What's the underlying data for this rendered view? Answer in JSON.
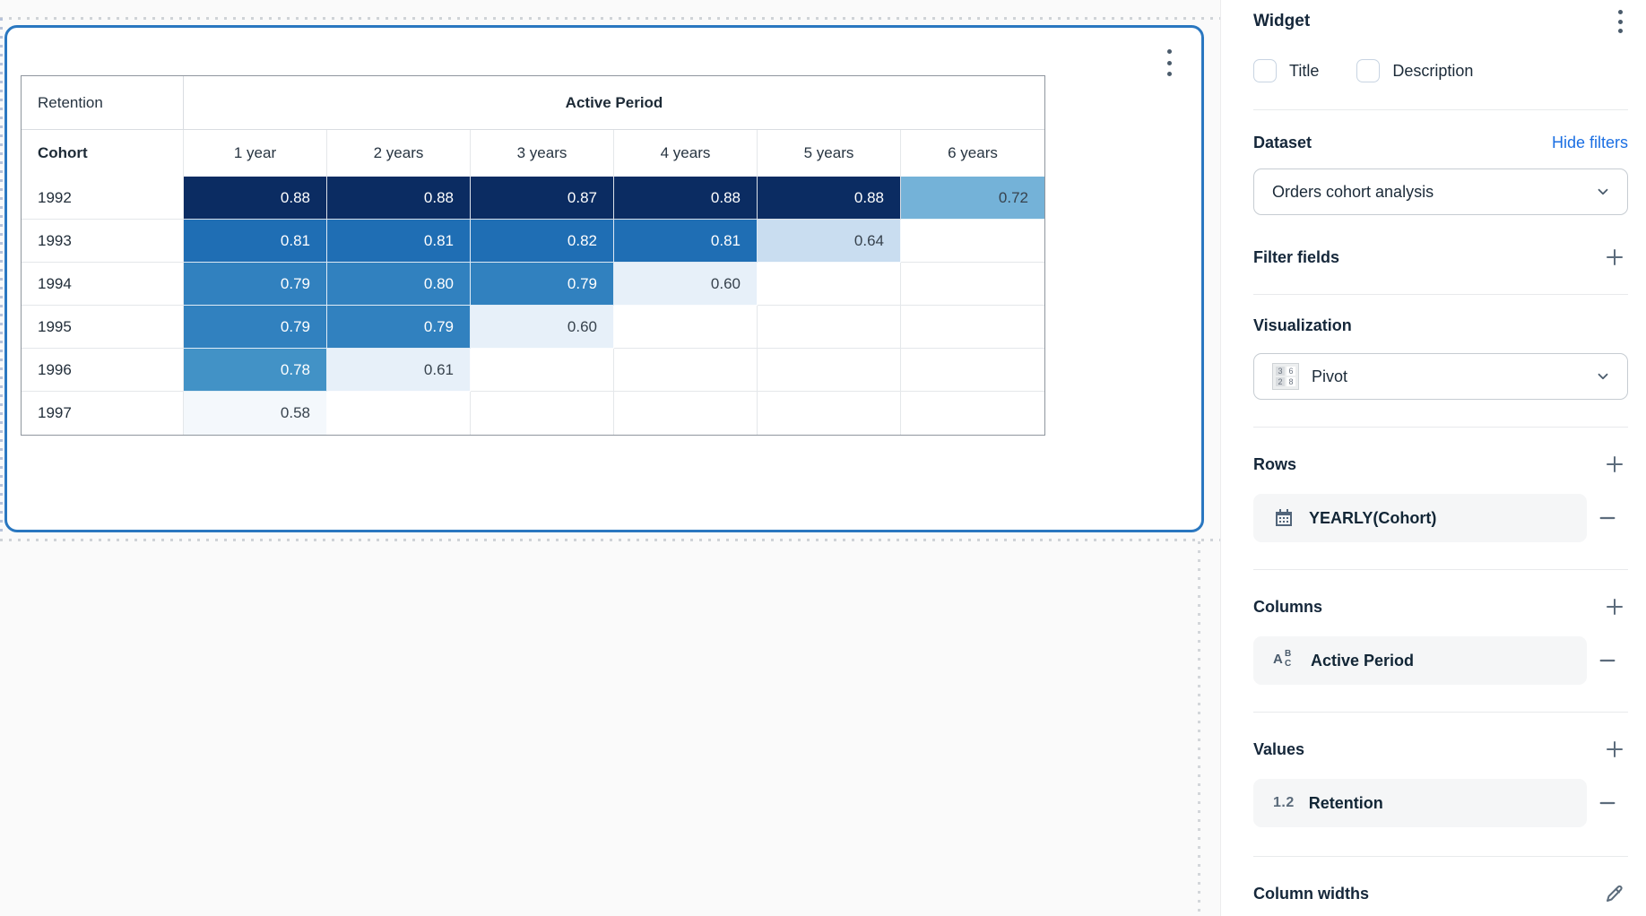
{
  "pivot": {
    "measure_label": "Retention",
    "col_group_label": "Active Period",
    "row_dim_label": "Cohort",
    "col_headers": [
      "1 year",
      "2 years",
      "3 years",
      "4 years",
      "5 years",
      "6 years"
    ],
    "rows": [
      {
        "label": "1992",
        "cells": [
          {
            "v": "0.88",
            "c": "navy"
          },
          {
            "v": "0.88",
            "c": "navy"
          },
          {
            "v": "0.87",
            "c": "navy"
          },
          {
            "v": "0.88",
            "c": "navy"
          },
          {
            "v": "0.88",
            "c": "navy"
          },
          {
            "v": "0.72",
            "c": "sky"
          }
        ]
      },
      {
        "label": "1993",
        "cells": [
          {
            "v": "0.81",
            "c": "blue"
          },
          {
            "v": "0.81",
            "c": "blue"
          },
          {
            "v": "0.82",
            "c": "blue"
          },
          {
            "v": "0.81",
            "c": "blue"
          },
          {
            "v": "0.64",
            "c": "pale"
          },
          null
        ]
      },
      {
        "label": "1994",
        "cells": [
          {
            "v": "0.79",
            "c": "blue2"
          },
          {
            "v": "0.80",
            "c": "blue2"
          },
          {
            "v": "0.79",
            "c": "blue2"
          },
          {
            "v": "0.60",
            "c": "faint"
          },
          null,
          null
        ]
      },
      {
        "label": "1995",
        "cells": [
          {
            "v": "0.79",
            "c": "blue2"
          },
          {
            "v": "0.79",
            "c": "blue2"
          },
          {
            "v": "0.60",
            "c": "faint"
          },
          null,
          null,
          null
        ]
      },
      {
        "label": "1996",
        "cells": [
          {
            "v": "0.78",
            "c": "blue3"
          },
          {
            "v": "0.61",
            "c": "faint"
          },
          null,
          null,
          null,
          null
        ]
      },
      {
        "label": "1997",
        "cells": [
          {
            "v": "0.58",
            "c": "near_white"
          },
          null,
          null,
          null,
          null,
          null
        ]
      }
    ],
    "colors": {
      "navy": {
        "bg": "#0b2c62",
        "fg": "#ffffff"
      },
      "blue": {
        "bg": "#1f6eb4",
        "fg": "#ffffff"
      },
      "blue2": {
        "bg": "#3181bf",
        "fg": "#ffffff"
      },
      "blue3": {
        "bg": "#4292c6",
        "fg": "#ffffff"
      },
      "sky": {
        "bg": "#74b2d8",
        "fg": "#37424d"
      },
      "pale": {
        "bg": "#c9ddf0",
        "fg": "#37424d"
      },
      "faint": {
        "bg": "#e7f0f9",
        "fg": "#37424d"
      },
      "near_white": {
        "bg": "#f4f8fc",
        "fg": "#37424d"
      }
    },
    "card_border_color": "#2a77c0"
  },
  "sidebar": {
    "title": "Widget",
    "checkboxes": [
      {
        "label": "Title",
        "checked": false
      },
      {
        "label": "Description",
        "checked": false
      }
    ],
    "dataset": {
      "heading": "Dataset",
      "link": "Hide filters",
      "selected": "Orders cohort analysis"
    },
    "filter_fields": {
      "heading": "Filter fields"
    },
    "visualization": {
      "heading": "Visualization",
      "selected": "Pivot",
      "icon_numbers": [
        "3",
        "6",
        "2",
        "8"
      ]
    },
    "rows_section": {
      "heading": "Rows",
      "item_label": "YEARLY(Cohort)"
    },
    "columns_section": {
      "heading": "Columns",
      "item_label": "Active Period"
    },
    "values_section": {
      "heading": "Values",
      "item_label": "Retention",
      "item_icon_text": "1.2"
    },
    "column_widths": {
      "heading": "Column widths"
    },
    "link_color": "#1b6fe3"
  },
  "chart_data": {
    "type": "heatmap",
    "title": "Retention",
    "row_label": "Cohort",
    "col_group_label": "Active Period",
    "columns": [
      "1 year",
      "2 years",
      "3 years",
      "4 years",
      "5 years",
      "6 years"
    ],
    "rows": [
      "1992",
      "1993",
      "1994",
      "1995",
      "1996",
      "1997"
    ],
    "values": [
      [
        0.88,
        0.88,
        0.87,
        0.88,
        0.88,
        0.72
      ],
      [
        0.81,
        0.81,
        0.82,
        0.81,
        0.64,
        null
      ],
      [
        0.79,
        0.8,
        0.79,
        0.6,
        null,
        null
      ],
      [
        0.79,
        0.79,
        0.6,
        null,
        null,
        null
      ],
      [
        0.78,
        0.61,
        null,
        null,
        null,
        null
      ],
      [
        0.58,
        null,
        null,
        null,
        null,
        null
      ]
    ],
    "legend_position": "none",
    "colormap": "blues"
  }
}
